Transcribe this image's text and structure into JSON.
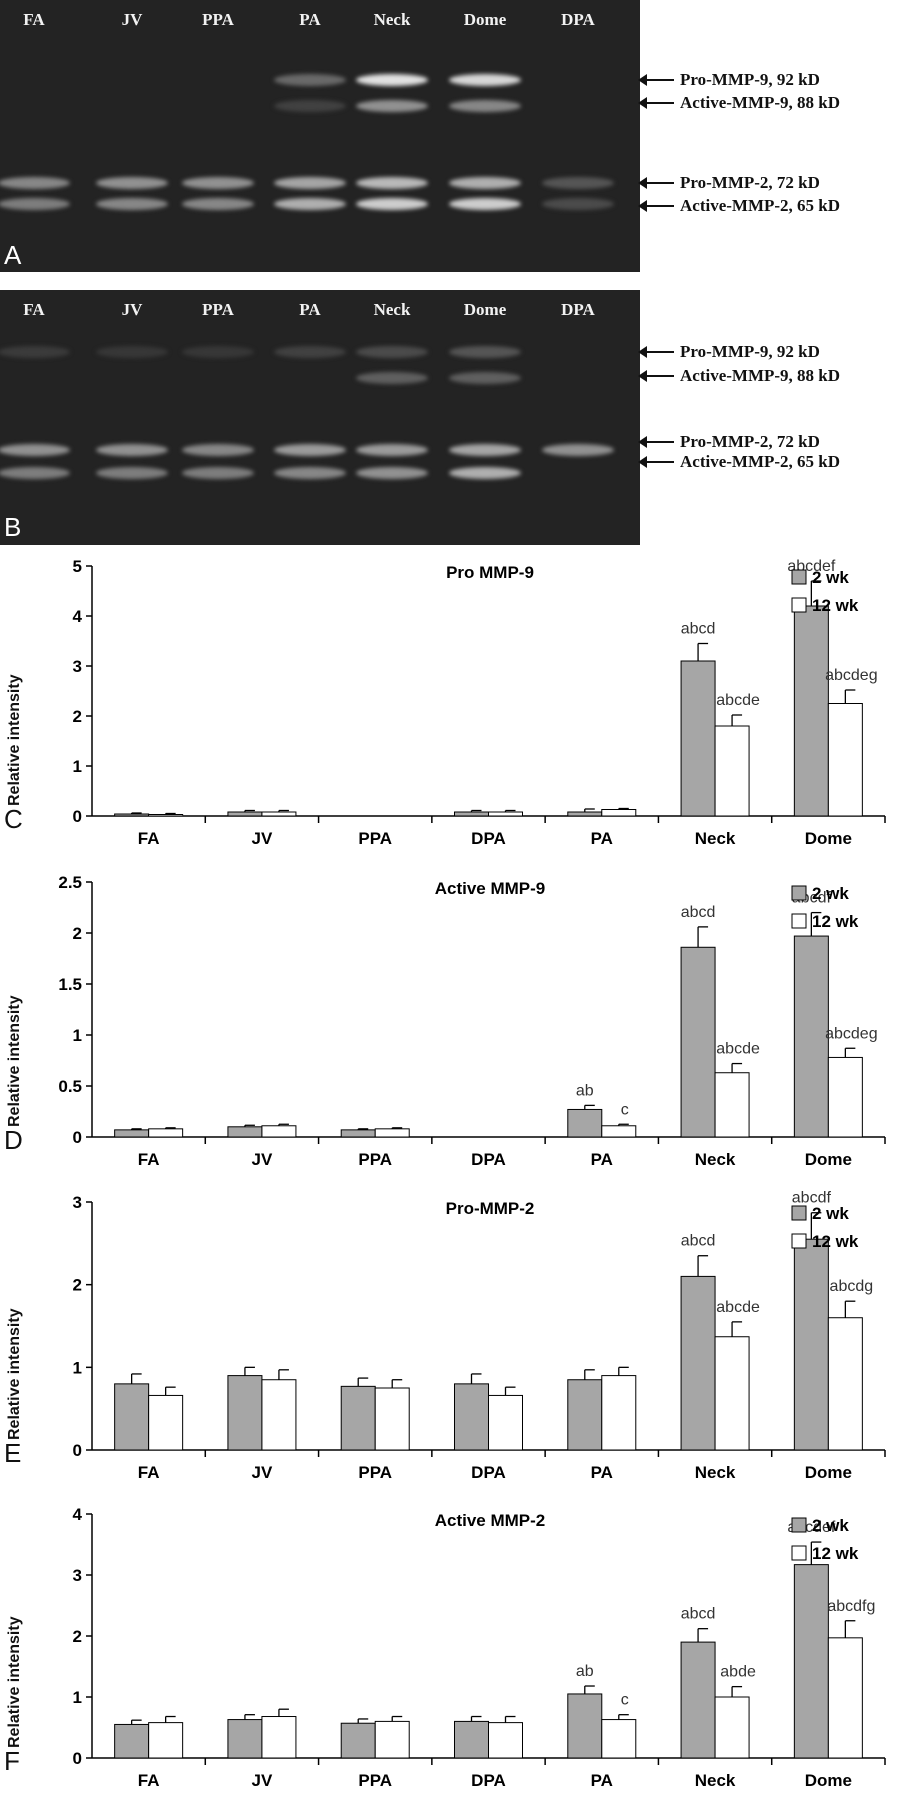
{
  "gels": [
    {
      "letter": "A",
      "lanes": [
        "FA",
        "JV",
        "PPA",
        "PA",
        "Neck",
        "Dome",
        "DPA"
      ],
      "bands": [
        "Pro-MMP-9, 92 kD",
        "Active-MMP-9, 88 kD",
        "Pro-MMP-2, 72 kD",
        "Active-MMP-2, 65 kD"
      ]
    },
    {
      "letter": "B",
      "lanes": [
        "FA",
        "JV",
        "PPA",
        "PA",
        "Neck",
        "Dome",
        "DPA"
      ],
      "bands": [
        "Pro-MMP-9, 92 kD",
        "Active-MMP-9, 88 kD",
        "Pro-MMP-2, 72 kD",
        "Active-MMP-2, 65 kD"
      ]
    }
  ],
  "chart_data": [
    {
      "type": "bar",
      "letter": "C",
      "title": "Pro MMP-9",
      "ylabel": "Relative  intensity",
      "categories": [
        "FA",
        "JV",
        "PPA",
        "DPA",
        "PA",
        "Neck",
        "Dome"
      ],
      "ylim": [
        0,
        5
      ],
      "yticks": [
        "0",
        "1",
        "2",
        "3",
        "4",
        "5"
      ],
      "legend": "top-right",
      "series": [
        {
          "name": "2 wk",
          "color": "#a6a6a6",
          "values": [
            0.04,
            0.08,
            0,
            0.08,
            0.08,
            3.1,
            4.2
          ],
          "errors": [
            0.02,
            0.03,
            0,
            0.03,
            0.06,
            0.35,
            0.5
          ],
          "labels": [
            "",
            "",
            "",
            "",
            "",
            "abcd",
            "abcdef"
          ]
        },
        {
          "name": "12 wk",
          "color": "#ffffff",
          "values": [
            0.03,
            0.08,
            0,
            0.08,
            0.13,
            1.8,
            2.25
          ],
          "errors": [
            0.02,
            0.03,
            0,
            0.03,
            0.02,
            0.22,
            0.27
          ],
          "labels": [
            "",
            "",
            "",
            "",
            "",
            "abcde",
            "abcdeg"
          ]
        }
      ]
    },
    {
      "type": "bar",
      "letter": "D",
      "title": "Active MMP-9",
      "ylabel": "Relative  intensity",
      "categories": [
        "FA",
        "JV",
        "PPA",
        "DPA",
        "PA",
        "Neck",
        "Dome"
      ],
      "ylim": [
        0,
        2.5
      ],
      "yticks": [
        "0",
        "0.5",
        "1",
        "1.5",
        "2",
        "2.5"
      ],
      "legend": "top-right",
      "series": [
        {
          "name": "2 wk",
          "color": "#a6a6a6",
          "values": [
            0.07,
            0.1,
            0.07,
            0,
            0.27,
            1.86,
            1.97
          ],
          "errors": [
            0.01,
            0.015,
            0.01,
            0,
            0.04,
            0.2,
            0.23
          ],
          "labels": [
            "",
            "",
            "",
            "",
            "ab",
            "abcd",
            "abcdf"
          ]
        },
        {
          "name": "12 wk",
          "color": "#ffffff",
          "values": [
            0.08,
            0.11,
            0.08,
            0,
            0.11,
            0.63,
            0.78
          ],
          "errors": [
            0.01,
            0.015,
            0.01,
            0,
            0.015,
            0.09,
            0.09
          ],
          "labels": [
            "",
            "",
            "",
            "",
            "c",
            "abcde",
            "abcdeg"
          ]
        }
      ]
    },
    {
      "type": "bar",
      "letter": "E",
      "title": "Pro-MMP-2",
      "ylabel": "Relative  intensity",
      "categories": [
        "FA",
        "JV",
        "PPA",
        "DPA",
        "PA",
        "Neck",
        "Dome"
      ],
      "ylim": [
        0,
        3
      ],
      "yticks": [
        "0",
        "1",
        "2",
        "3"
      ],
      "legend": "top-right",
      "series": [
        {
          "name": "2 wk",
          "color": "#a6a6a6",
          "values": [
            0.8,
            0.9,
            0.77,
            0.8,
            0.85,
            2.1,
            2.55
          ],
          "errors": [
            0.12,
            0.1,
            0.1,
            0.12,
            0.12,
            0.25,
            0.32
          ],
          "labels": [
            "",
            "",
            "",
            "",
            "",
            "abcd",
            "abcdf"
          ]
        },
        {
          "name": "12 wk",
          "color": "#ffffff",
          "values": [
            0.66,
            0.85,
            0.75,
            0.66,
            0.9,
            1.37,
            1.6
          ],
          "errors": [
            0.1,
            0.12,
            0.1,
            0.1,
            0.1,
            0.18,
            0.2
          ],
          "labels": [
            "",
            "",
            "",
            "",
            "",
            "abcde",
            "abcdg"
          ]
        }
      ]
    },
    {
      "type": "bar",
      "letter": "F",
      "title": "Active MMP-2",
      "ylabel": "Relative  intensity",
      "categories": [
        "FA",
        "JV",
        "PPA",
        "DPA",
        "PA",
        "Neck",
        "Dome"
      ],
      "ylim": [
        0,
        4
      ],
      "yticks": [
        "0",
        "1",
        "2",
        "3",
        "4"
      ],
      "legend": "top-right",
      "series": [
        {
          "name": "2 wk",
          "color": "#a6a6a6",
          "values": [
            0.55,
            0.63,
            0.57,
            0.6,
            1.05,
            1.9,
            3.17
          ],
          "errors": [
            0.07,
            0.08,
            0.07,
            0.08,
            0.13,
            0.22,
            0.37
          ],
          "labels": [
            "",
            "",
            "",
            "",
            "ab",
            "abcd",
            "abcdef"
          ]
        },
        {
          "name": "12 wk",
          "color": "#ffffff",
          "values": [
            0.58,
            0.68,
            0.6,
            0.58,
            0.63,
            1.0,
            1.97
          ],
          "errors": [
            0.1,
            0.12,
            0.08,
            0.1,
            0.08,
            0.17,
            0.28
          ],
          "labels": [
            "",
            "",
            "",
            "",
            "c",
            "abde",
            "abcdfg"
          ]
        }
      ]
    }
  ]
}
